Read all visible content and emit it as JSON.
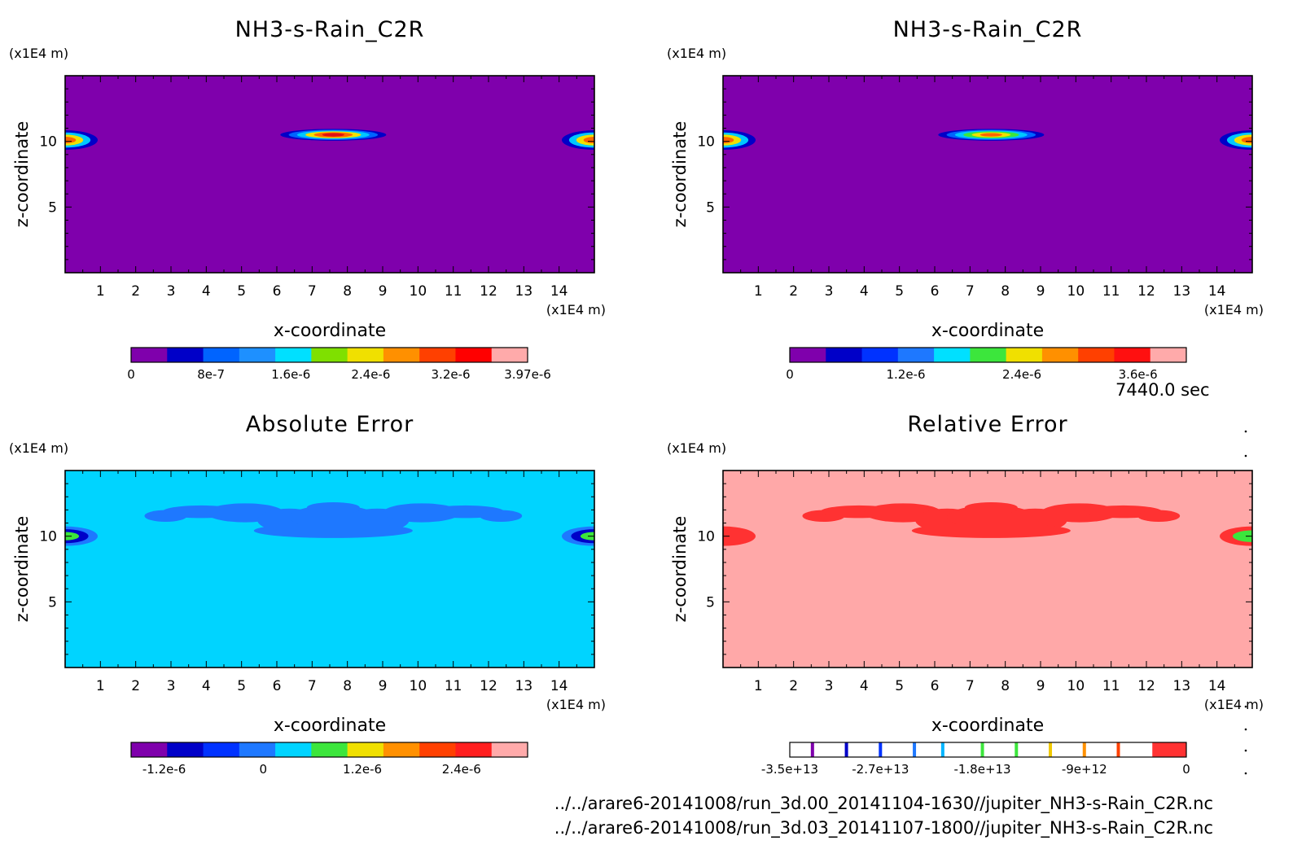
{
  "time_label": "7440.0 sec",
  "footer": {
    "file_a": "../../arare6-20141008/run_3d.00_20141104-1630//jupiter_NH3-s-Rain_C2R.nc",
    "file_b": "../../arare6-20141008/run_3d.03_20141107-1800//jupiter_NH3-s-Rain_C2R.nc"
  },
  "chart_data": [
    {
      "type": "heatmap",
      "title": "NH3-s-Rain_C2R",
      "xlabel": "x-coordinate",
      "ylabel": "z-coordinate",
      "x_unit": "(x1E4 m)",
      "y_unit": "(x1E4 m)",
      "xlim": [
        0,
        15
      ],
      "ylim": [
        0,
        15
      ],
      "x_ticks": [
        1,
        2,
        3,
        4,
        5,
        6,
        7,
        8,
        9,
        10,
        11,
        12,
        13,
        14
      ],
      "y_ticks": [
        5,
        10
      ],
      "background_color": "#7f00ac",
      "features": [
        {
          "kind": "lens",
          "x_center": 7.6,
          "z_center": 10.5,
          "x_halfwidth": 1.5,
          "z_halfwidth": 0.45,
          "colors": [
            "#0000c8",
            "#0064ff",
            "#00c8ff",
            "#f0e000",
            "#ff6400",
            "#e01010"
          ]
        },
        {
          "kind": "edge-left",
          "z_center": 10.1,
          "colors": [
            "#0000c8",
            "#00c8ff",
            "#f0e000",
            "#ff6400"
          ]
        },
        {
          "kind": "edge-right",
          "z_center": 10.1,
          "colors": [
            "#0000c8",
            "#00c8ff",
            "#f0e000",
            "#ff6400"
          ]
        }
      ],
      "colorbar": {
        "min": 0,
        "max": 3.97e-06,
        "colors": [
          "#7f00ac",
          "#0000c8",
          "#0064ff",
          "#1e90ff",
          "#00e0ff",
          "#7fe000",
          "#f0e000",
          "#ff9000",
          "#ff4000",
          "#ff0000",
          "#ffaaaa"
        ],
        "tick_labels": [
          "0",
          "8e-7",
          "1.6e-6",
          "2.4e-6",
          "3.2e-6",
          "3.97e-6"
        ],
        "tick_values": [
          0,
          8e-07,
          1.6e-06,
          2.4e-06,
          3.2e-06,
          3.97e-06
        ]
      }
    },
    {
      "type": "heatmap",
      "title": "NH3-s-Rain_C2R",
      "xlabel": "x-coordinate",
      "ylabel": "z-coordinate",
      "x_unit": "(x1E4 m)",
      "y_unit": "(x1E4 m)",
      "xlim": [
        0,
        15
      ],
      "ylim": [
        0,
        15
      ],
      "x_ticks": [
        1,
        2,
        3,
        4,
        5,
        6,
        7,
        8,
        9,
        10,
        11,
        12,
        13,
        14
      ],
      "y_ticks": [
        5,
        10
      ],
      "background_color": "#7f00ac",
      "features": [
        {
          "kind": "lens",
          "x_center": 7.6,
          "z_center": 10.5,
          "x_halfwidth": 1.5,
          "z_halfwidth": 0.45,
          "colors": [
            "#0000c8",
            "#0064ff",
            "#00c8ff",
            "#3ce63c",
            "#f0e000",
            "#ff6400"
          ]
        },
        {
          "kind": "edge-left",
          "z_center": 10.1,
          "colors": [
            "#0000c8",
            "#00c8ff",
            "#f0e000",
            "#ff6400"
          ]
        },
        {
          "kind": "edge-right",
          "z_center": 10.1,
          "colors": [
            "#0000c8",
            "#00c8ff",
            "#f0e000",
            "#ff6400"
          ]
        }
      ],
      "colorbar": {
        "min": 0,
        "max": 4.1e-06,
        "colors": [
          "#7f00ac",
          "#0000c8",
          "#0032ff",
          "#1e78ff",
          "#00e0ff",
          "#3ce63c",
          "#f0e000",
          "#ff9000",
          "#ff4000",
          "#ff1010",
          "#ffaaaa"
        ],
        "tick_labels": [
          "0",
          "1.2e-6",
          "2.4e-6",
          "3.6e-6"
        ],
        "tick_values": [
          0,
          1.2e-06,
          2.4e-06,
          3.6e-06
        ]
      }
    },
    {
      "type": "heatmap",
      "title": "Absolute Error",
      "xlabel": "x-coordinate",
      "ylabel": "z-coordinate",
      "x_unit": "(x1E4 m)",
      "y_unit": "(x1E4 m)",
      "xlim": [
        0,
        15
      ],
      "ylim": [
        0,
        15
      ],
      "x_ticks": [
        1,
        2,
        3,
        4,
        5,
        6,
        7,
        8,
        9,
        10,
        11,
        12,
        13,
        14
      ],
      "y_ticks": [
        5,
        10
      ],
      "background_color": "#00d4ff",
      "features": [
        {
          "kind": "blob",
          "x_center": 7.6,
          "z_center": 11.3,
          "x_halfwidth": 5.0,
          "z_halfwidth": 1.6,
          "colors": [
            "#1e78ff"
          ]
        },
        {
          "kind": "edge-left",
          "z_center": 10.0,
          "colors": [
            "#1e78ff",
            "#0000c8",
            "#3ce63c"
          ]
        },
        {
          "kind": "edge-right",
          "z_center": 10.0,
          "colors": [
            "#1e78ff",
            "#0000c8",
            "#3ce63c"
          ]
        }
      ],
      "colorbar": {
        "min": -1.6e-06,
        "max": 3.2e-06,
        "colors": [
          "#7f00ac",
          "#0000c8",
          "#0032ff",
          "#1e78ff",
          "#00d4ff",
          "#3ce63c",
          "#f0e000",
          "#ff9000",
          "#ff4000",
          "#ff1e1e",
          "#ffaaaa"
        ],
        "tick_labels": [
          "-1.2e-6",
          "0",
          "1.2e-6",
          "2.4e-6"
        ],
        "tick_values": [
          -1.2e-06,
          0,
          1.2e-06,
          2.4e-06
        ]
      }
    },
    {
      "type": "heatmap",
      "title": "Relative Error",
      "xlabel": "x-coordinate",
      "ylabel": "z-coordinate",
      "x_unit": "(x1E4 m)",
      "y_unit": "(x1E4 m)",
      "xlim": [
        0,
        15
      ],
      "ylim": [
        0,
        15
      ],
      "x_ticks": [
        1,
        2,
        3,
        4,
        5,
        6,
        7,
        8,
        9,
        10,
        11,
        12,
        13,
        14
      ],
      "y_ticks": [
        5,
        10
      ],
      "background_color": "#ffa8a8",
      "features": [
        {
          "kind": "blob",
          "x_center": 7.6,
          "z_center": 11.3,
          "x_halfwidth": 5.0,
          "z_halfwidth": 1.6,
          "colors": [
            "#ff3232"
          ]
        },
        {
          "kind": "edge-left",
          "z_center": 10.0,
          "colors": [
            "#ff3232"
          ]
        },
        {
          "kind": "edge-right",
          "z_center": 10.0,
          "colors": [
            "#ff3232",
            "#3ce63c"
          ]
        }
      ],
      "colorbar": {
        "min": -35000000000000.0,
        "max": 0,
        "style": "lines",
        "line_values": [
          -33000000000000.0,
          -30000000000000.0,
          -27000000000000.0,
          -24000000000000.0,
          -21500000000000.0,
          -18000000000000.0,
          -15000000000000.0,
          -12000000000000.0,
          -9000000000000.0,
          -6000000000000.0
        ],
        "line_colors": [
          "#7f00ac",
          "#0000c8",
          "#0032ff",
          "#1e78ff",
          "#00b4ff",
          "#3ce63c",
          "#3ce63c",
          "#f0c800",
          "#ff9000",
          "#ff4000"
        ],
        "end_block_from": -3000000000000.0,
        "end_block_color": "#ff3232",
        "tick_labels": [
          "-3.5e+13",
          "-2.7e+13",
          "-1.8e+13",
          "-9e+12",
          "0"
        ],
        "tick_values": [
          -35000000000000.0,
          -27000000000000.0,
          -18000000000000.0,
          -9000000000000.0,
          0
        ]
      }
    }
  ]
}
